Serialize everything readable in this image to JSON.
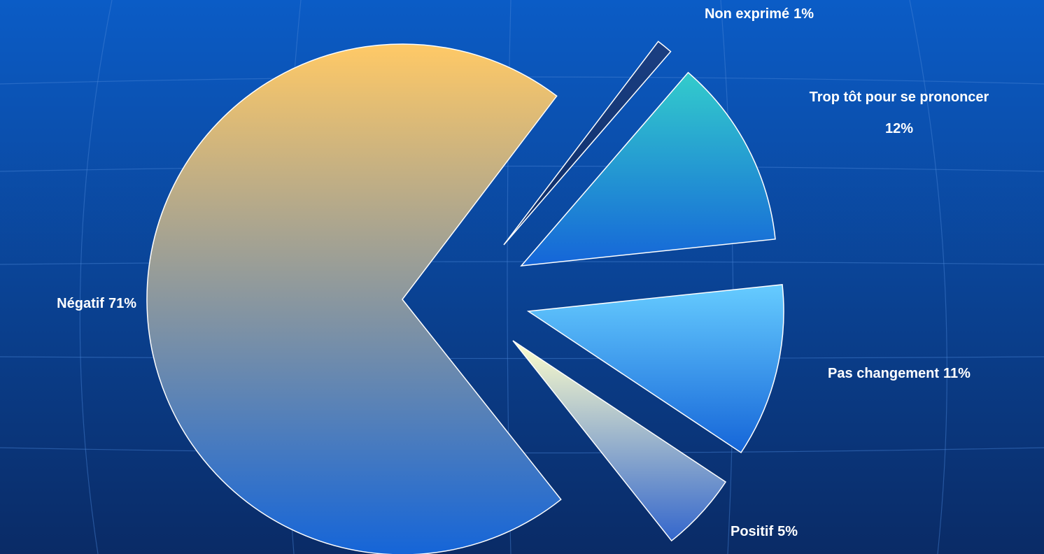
{
  "chart_data": {
    "type": "pie",
    "categories": [
      "Négatif",
      "Non exprimé",
      "Trop tôt pour se prononcer",
      "Pas changement",
      "Positif"
    ],
    "values": [
      71,
      1,
      12,
      11,
      5
    ],
    "value_labels": [
      "71%",
      "1%",
      "12%",
      "11%",
      "5%"
    ],
    "colors": [
      [
        "#ffc966",
        "#1565d8"
      ],
      [
        "#1b3f82",
        "#0d2c66"
      ],
      [
        "#33cccc",
        "#1565d8"
      ],
      [
        "#66ccff",
        "#1565d8"
      ],
      [
        "#ffffcc",
        "#3366cc"
      ]
    ]
  }
}
